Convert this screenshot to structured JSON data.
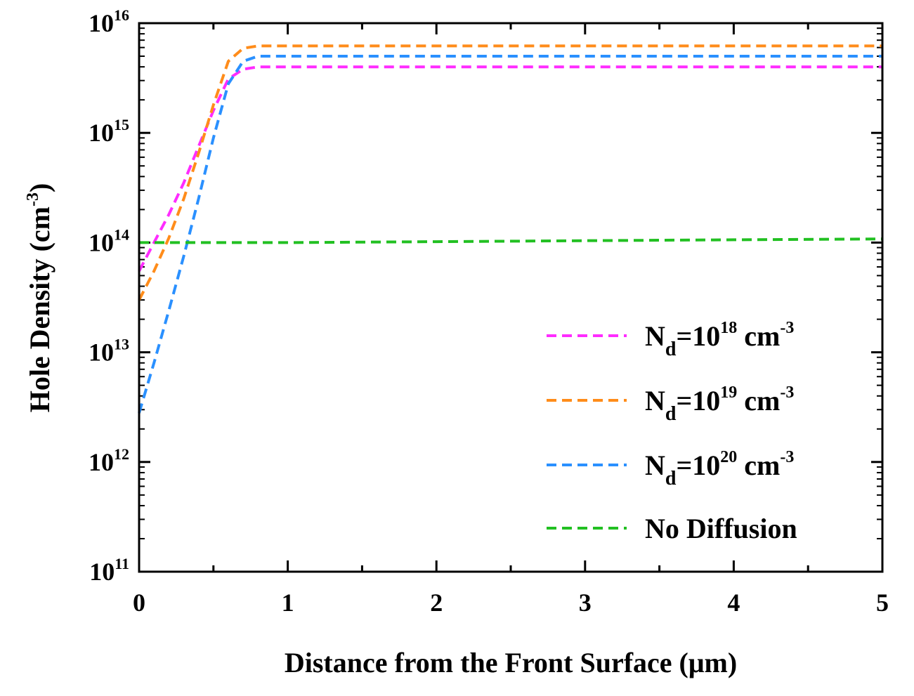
{
  "chart_data": {
    "type": "line",
    "title": "",
    "xlabel": "Distance from the Front Surface (μm)",
    "ylabel": {
      "base": "Hole Density (cm",
      "sup": "-3",
      "tail": ")"
    },
    "xlim": [
      0,
      5
    ],
    "ylim": [
      100000000000.0,
      1e+16
    ],
    "yscale": "log",
    "x_ticks": [
      "0",
      "1",
      "2",
      "3",
      "4",
      "5"
    ],
    "y_ticks": [
      {
        "value": 100000000000.0,
        "base": "10",
        "exp": "11"
      },
      {
        "value": 1000000000000.0,
        "base": "10",
        "exp": "12"
      },
      {
        "value": 10000000000000.0,
        "base": "10",
        "exp": "13"
      },
      {
        "value": 100000000000000.0,
        "base": "10",
        "exp": "14"
      },
      {
        "value": 1000000000000000.0,
        "base": "10",
        "exp": "15"
      },
      {
        "value": 1e+16,
        "base": "10",
        "exp": "16"
      }
    ],
    "legend_position": "lower-right",
    "line_style": "dashed",
    "series": [
      {
        "key": "nd18",
        "label": {
          "base": "N",
          "sub": "d",
          "mid": "=10",
          "sup": "18",
          "unit": " cm",
          "unit_sup": "-3"
        },
        "color": "#ff2cff",
        "x": [
          0,
          0.1,
          0.2,
          0.3,
          0.4,
          0.5,
          0.6,
          0.7,
          0.8,
          1,
          2,
          3,
          4,
          5
        ],
        "y": [
          55000000000000.0,
          100000000000000.0,
          180000000000000.0,
          350000000000000.0,
          750000000000000.0,
          1600000000000000.0,
          3100000000000000.0,
          3800000000000000.0,
          4000000000000000.0,
          4000000000000000.0,
          4000000000000000.0,
          4000000000000000.0,
          4000000000000000.0,
          4000000000000000.0
        ]
      },
      {
        "key": "nd19",
        "label": {
          "base": "N",
          "sub": "d",
          "mid": "=10",
          "sup": "19",
          "unit": " cm",
          "unit_sup": "-3"
        },
        "color": "#ff8c1a",
        "x": [
          0,
          0.1,
          0.2,
          0.3,
          0.4,
          0.5,
          0.6,
          0.7,
          0.8,
          1,
          2,
          3,
          4,
          5
        ],
        "y": [
          30000000000000.0,
          55000000000000.0,
          110000000000000.0,
          250000000000000.0,
          650000000000000.0,
          1800000000000000.0,
          4500000000000000.0,
          5900000000000000.0,
          6200000000000000.0,
          6200000000000000.0,
          6200000000000000.0,
          6200000000000000.0,
          6200000000000000.0,
          6200000000000000.0
        ]
      },
      {
        "key": "nd20",
        "label": {
          "base": "N",
          "sub": "d",
          "mid": "=10",
          "sup": "20",
          "unit": " cm",
          "unit_sup": "-3"
        },
        "color": "#2a90ff",
        "x": [
          0,
          0.1,
          0.2,
          0.3,
          0.4,
          0.5,
          0.6,
          0.7,
          0.8,
          1,
          2,
          3,
          4,
          5
        ],
        "y": [
          2800000000000.0,
          8000000000000.0,
          24000000000000.0,
          75000000000000.0,
          250000000000000.0,
          900000000000000.0,
          2800000000000000.0,
          4500000000000000.0,
          5000000000000000.0,
          5000000000000000.0,
          5000000000000000.0,
          5000000000000000.0,
          5000000000000000.0,
          5000000000000000.0
        ]
      },
      {
        "key": "nodiff",
        "label": {
          "text": "No Diffusion"
        },
        "color": "#22c022",
        "x": [
          0,
          1,
          2,
          3,
          4,
          5
        ],
        "y": [
          100000000000000.0,
          100000000000000.0,
          102000000000000.0,
          104000000000000.0,
          106000000000000.0,
          108000000000000.0
        ]
      }
    ]
  }
}
